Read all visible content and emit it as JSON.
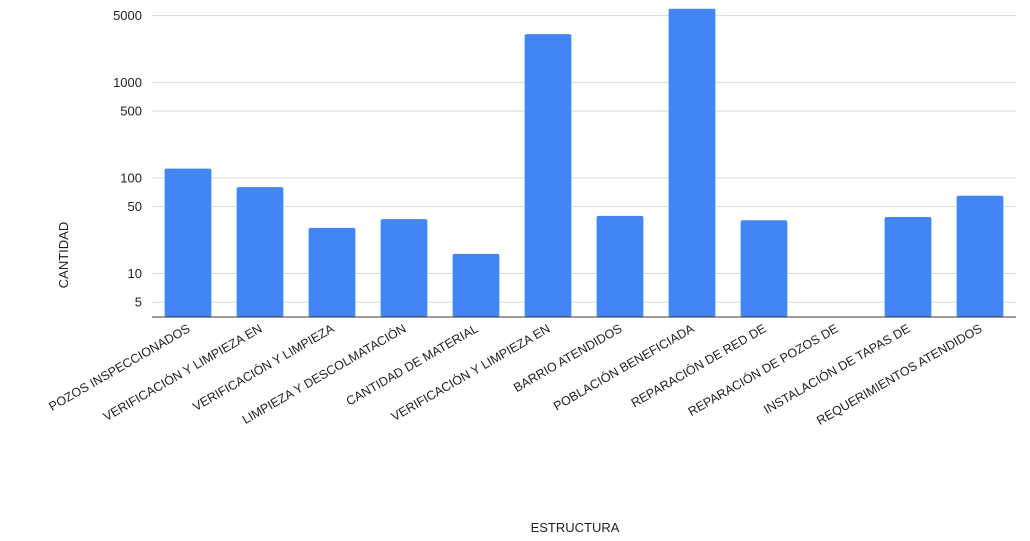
{
  "chart_data": {
    "type": "bar",
    "title": "",
    "xlabel": "ESTRUCTURA",
    "ylabel": "CANTIDAD",
    "y_scale": "log",
    "ylim": [
      3.5,
      6000
    ],
    "y_ticks": [
      5,
      10,
      50,
      100,
      500,
      1000,
      5000
    ],
    "grid": true,
    "legend": "none",
    "bar_color": "#4285f4",
    "categories": [
      "POZOS INSPECCIONADOS",
      "VERIFICACIÓN Y LIMPIEZA EN",
      "VERIFICACIÓN Y LIMPIEZA",
      "LIMPIEZA Y DESCOLMATACIÓN",
      "CANTIDAD DE MATERIAL",
      "VERIFICACIÓN Y LIMPIEZA EN",
      "BARRIO ATENDIDOS",
      "POBLACIÓN BENEFICIADA",
      "REPARACIÓN DE RED DE",
      "REPARACIÓN DE POZOS DE",
      "INSTALACIÓN DE TAPAS DE",
      "REQUERIMIENTOS ATENDIDOS"
    ],
    "values": [
      125,
      80,
      30,
      37,
      16,
      3200,
      40,
      5900,
      36,
      0,
      39,
      65
    ]
  }
}
